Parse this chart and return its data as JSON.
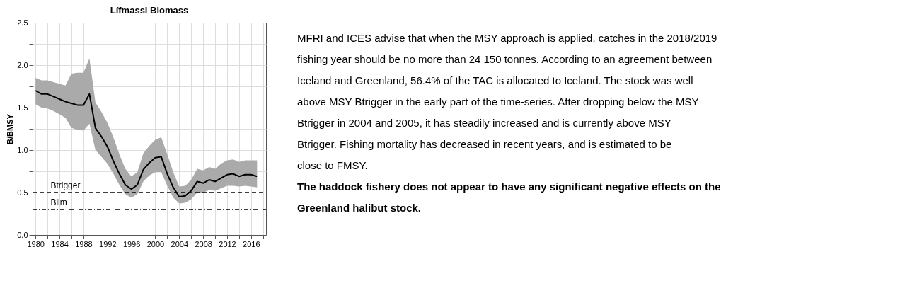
{
  "chart_data": {
    "type": "line",
    "title": "Lífmassi Biomass",
    "ylabel": "B/BMSY",
    "x": [
      1980,
      1981,
      1982,
      1983,
      1984,
      1985,
      1986,
      1987,
      1988,
      1989,
      1990,
      1991,
      1992,
      1993,
      1994,
      1995,
      1996,
      1997,
      1998,
      1999,
      2000,
      2001,
      2002,
      2003,
      2004,
      2005,
      2006,
      2007,
      2008,
      2009,
      2010,
      2011,
      2012,
      2013,
      2014,
      2015,
      2016,
      2017
    ],
    "series": [
      {
        "color": "#000000",
        "values": [
          1.7,
          1.66,
          1.66,
          1.63,
          1.6,
          1.57,
          1.55,
          1.53,
          1.53,
          1.66,
          1.26,
          1.16,
          1.04,
          0.87,
          0.72,
          0.59,
          0.54,
          0.59,
          0.77,
          0.85,
          0.91,
          0.92,
          0.72,
          0.56,
          0.45,
          0.46,
          0.52,
          0.63,
          0.61,
          0.65,
          0.63,
          0.67,
          0.71,
          0.72,
          0.69,
          0.71,
          0.71,
          0.69
        ],
        "lower": [
          1.54,
          1.5,
          1.49,
          1.46,
          1.42,
          1.38,
          1.26,
          1.24,
          1.23,
          1.31,
          1.0,
          0.92,
          0.84,
          0.72,
          0.59,
          0.48,
          0.44,
          0.48,
          0.63,
          0.7,
          0.74,
          0.74,
          0.58,
          0.44,
          0.37,
          0.38,
          0.42,
          0.5,
          0.5,
          0.53,
          0.52,
          0.55,
          0.58,
          0.58,
          0.57,
          0.58,
          0.57,
          0.56
        ],
        "upper": [
          1.85,
          1.82,
          1.82,
          1.8,
          1.78,
          1.76,
          1.9,
          1.91,
          1.91,
          2.08,
          1.56,
          1.45,
          1.32,
          1.15,
          0.95,
          0.78,
          0.69,
          0.74,
          0.96,
          1.05,
          1.12,
          1.15,
          0.95,
          0.74,
          0.57,
          0.58,
          0.65,
          0.78,
          0.76,
          0.8,
          0.78,
          0.84,
          0.88,
          0.89,
          0.86,
          0.88,
          0.88,
          0.88
        ]
      }
    ],
    "xlim": [
      1979.5,
      2018.5
    ],
    "xticks": [
      1980,
      {
        "value": 1982,
        "label": null
      },
      1984,
      {
        "value": 1986,
        "label": null
      },
      1988,
      {
        "value": 1990,
        "label": null
      },
      1992,
      {
        "value": 1994,
        "label": null
      },
      1996,
      {
        "value": 1998,
        "label": null
      },
      2000,
      {
        "value": 2002,
        "label": null
      },
      2004,
      {
        "value": 2006,
        "label": null
      },
      2008,
      {
        "value": 2010,
        "label": null
      },
      2012,
      {
        "value": 2014,
        "label": null
      },
      2016,
      {
        "value": 2018,
        "label": null
      }
    ],
    "ylim": [
      0,
      2.5
    ],
    "yticks": [
      {
        "value": 0,
        "label": "0.0"
      },
      {
        "value": 0.25,
        "label": null
      },
      0.5,
      {
        "value": 0.75,
        "label": null
      },
      {
        "value": 1,
        "label": "1.0"
      },
      {
        "value": 1.25,
        "label": null
      },
      1.5,
      {
        "value": 1.75,
        "label": null
      },
      {
        "value": 2,
        "label": "2.0"
      },
      {
        "value": 2.25,
        "label": null
      },
      2.5
    ],
    "grid": true,
    "ref_lines": [
      {
        "axis": "y",
        "value": 0.5,
        "label": "Btrigger",
        "line_style": "dashed",
        "color": "#000000"
      },
      {
        "axis": "y",
        "value": 0.3,
        "label": "Blim",
        "line_style": "dashdot",
        "color": "#000000"
      }
    ],
    "annotations": [
      "MFRI and ICES advise that when the MSY approach is applied, catches in the 2018/2019 fishing year should be no more than 24 150 tonnes. According to an agreement between Iceland and Greenland, 56.4% of the TAC is allocated to Iceland. The stock was well above MSY Btrigger in the early part of the time-series. After dropping below the MSY Btrigger in 2004 and 2005, it has steadily increased and is currently above MSY Btrigger. Fishing mortality has decreased in recent years, and is estimated to be close to FMSY.",
      "The haddock fishery does not appear to have any significant negative effects on the Greenland halibut stock."
    ]
  }
}
